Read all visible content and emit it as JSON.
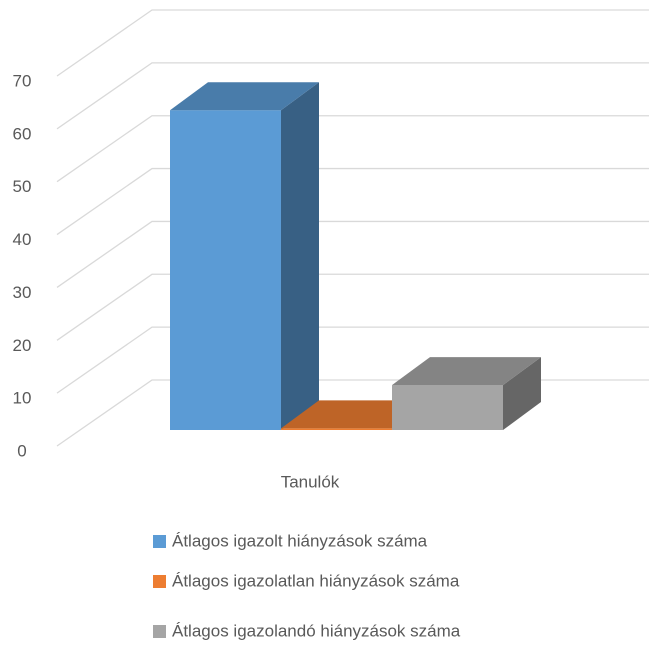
{
  "chart_data": {
    "type": "bar3d",
    "categories": [
      "Tanulók"
    ],
    "series": [
      {
        "name": "Átlagos igazolt hiányzások száma",
        "color": "#5b9bd5",
        "values": [
          60.5
        ]
      },
      {
        "name": "Átlagos igazolatlan hiányzások száma",
        "color": "#ed7d31",
        "values": [
          0.3
        ]
      },
      {
        "name": "Átlagos igazolandó hiányzások száma",
        "color": "#a5a5a5",
        "values": [
          8.5
        ]
      }
    ],
    "ylim": [
      0,
      70
    ],
    "yticks": [
      0,
      10,
      20,
      30,
      40,
      50,
      60,
      70
    ],
    "grid": true,
    "legend": "bottom"
  }
}
